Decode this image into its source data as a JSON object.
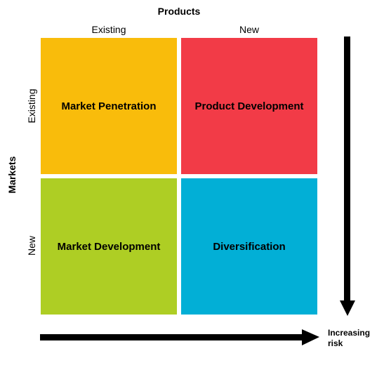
{
  "products": {
    "title": "Products",
    "columns": [
      "Existing",
      "New"
    ]
  },
  "markets": {
    "title": "Markets",
    "rows": [
      "Existing",
      "New"
    ]
  },
  "quadrants": [
    {
      "label": "Market Penetration",
      "color": "#F9BC0B"
    },
    {
      "label": "Product Development",
      "color": "#F23B47"
    },
    {
      "label": "Market Development",
      "color": "#AECE24"
    },
    {
      "label": "Diversification",
      "color": "#02AFD6"
    }
  ],
  "risk": {
    "line1": "Increasing",
    "line2": "risk"
  }
}
